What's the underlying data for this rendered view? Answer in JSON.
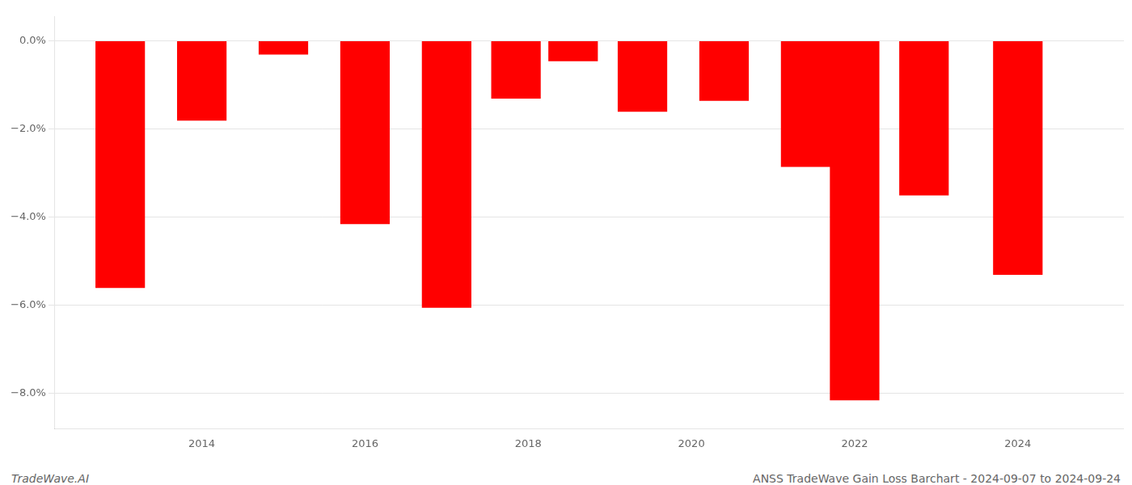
{
  "chart_data": {
    "type": "bar",
    "x": [
      2013,
      2014,
      2015,
      2016,
      2017,
      2017.85,
      2018.55,
      2019.4,
      2020.4,
      2021.4,
      2022,
      2022.85,
      2024
    ],
    "values": [
      -5.6,
      -1.8,
      -0.3,
      -4.15,
      -6.05,
      -1.3,
      -0.45,
      -1.6,
      -1.35,
      -2.85,
      -8.15,
      -3.5,
      -5.3
    ],
    "color": "#ff0000",
    "xlim": [
      2012.2,
      2025.3
    ],
    "xticks": [
      2014,
      2016,
      2018,
      2020,
      2022,
      2024
    ],
    "ylim": [
      -8.8,
      0.55
    ],
    "yticks": [
      {
        "value": 0,
        "label": "0.0%"
      },
      {
        "value": -2,
        "label": "−2.0%"
      },
      {
        "value": -4,
        "label": "−4.0%"
      },
      {
        "value": -6,
        "label": "−6.0%"
      },
      {
        "value": -8,
        "label": "−8.0%"
      }
    ],
    "grid": "y",
    "annotations": [
      "TradeWave.AI",
      "ANSS TradeWave Gain Loss Barchart - 2024-09-07 to 2024-09-24"
    ]
  }
}
